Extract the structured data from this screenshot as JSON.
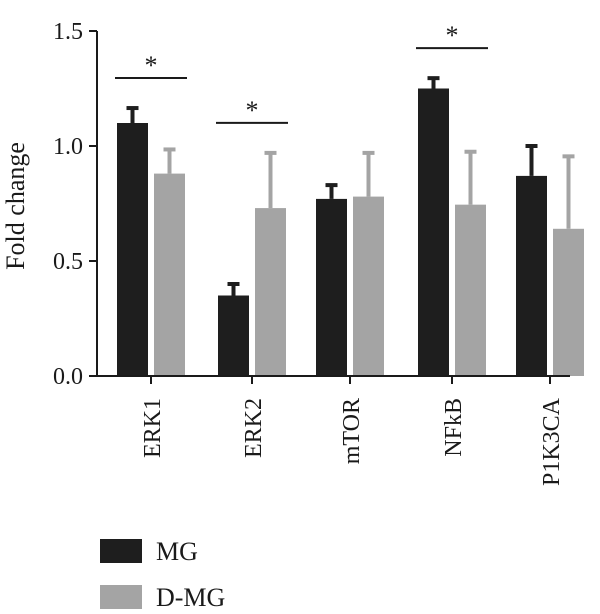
{
  "chart_data": {
    "type": "bar",
    "title": "",
    "xlabel": "",
    "ylabel": "Fold change",
    "ylim": [
      0,
      1.5
    ],
    "yticks": [
      0.0,
      0.5,
      1.0,
      1.5
    ],
    "ytick_labels": [
      "0.0",
      "0.5",
      "1.0",
      "1.5"
    ],
    "categories": [
      "ERK1",
      "ERK2",
      "mTOR",
      "NFkB",
      "P1K3CA"
    ],
    "series": [
      {
        "name": "MG",
        "color": "#1e1e1e",
        "values": [
          1.1,
          0.35,
          0.77,
          1.25,
          0.87
        ],
        "errors": [
          0.065,
          0.05,
          0.06,
          0.045,
          0.13
        ]
      },
      {
        "name": "D-MG",
        "color": "#a4a4a4",
        "values": [
          0.88,
          0.73,
          0.78,
          0.745,
          0.64
        ],
        "errors": [
          0.105,
          0.24,
          0.19,
          0.23,
          0.315
        ]
      }
    ],
    "significance": [
      {
        "category": "ERK1",
        "label": "*"
      },
      {
        "category": "ERK2",
        "label": "*"
      },
      {
        "category": "NFkB",
        "label": "*"
      }
    ],
    "legend_position": "bottom-left",
    "grid": false
  }
}
